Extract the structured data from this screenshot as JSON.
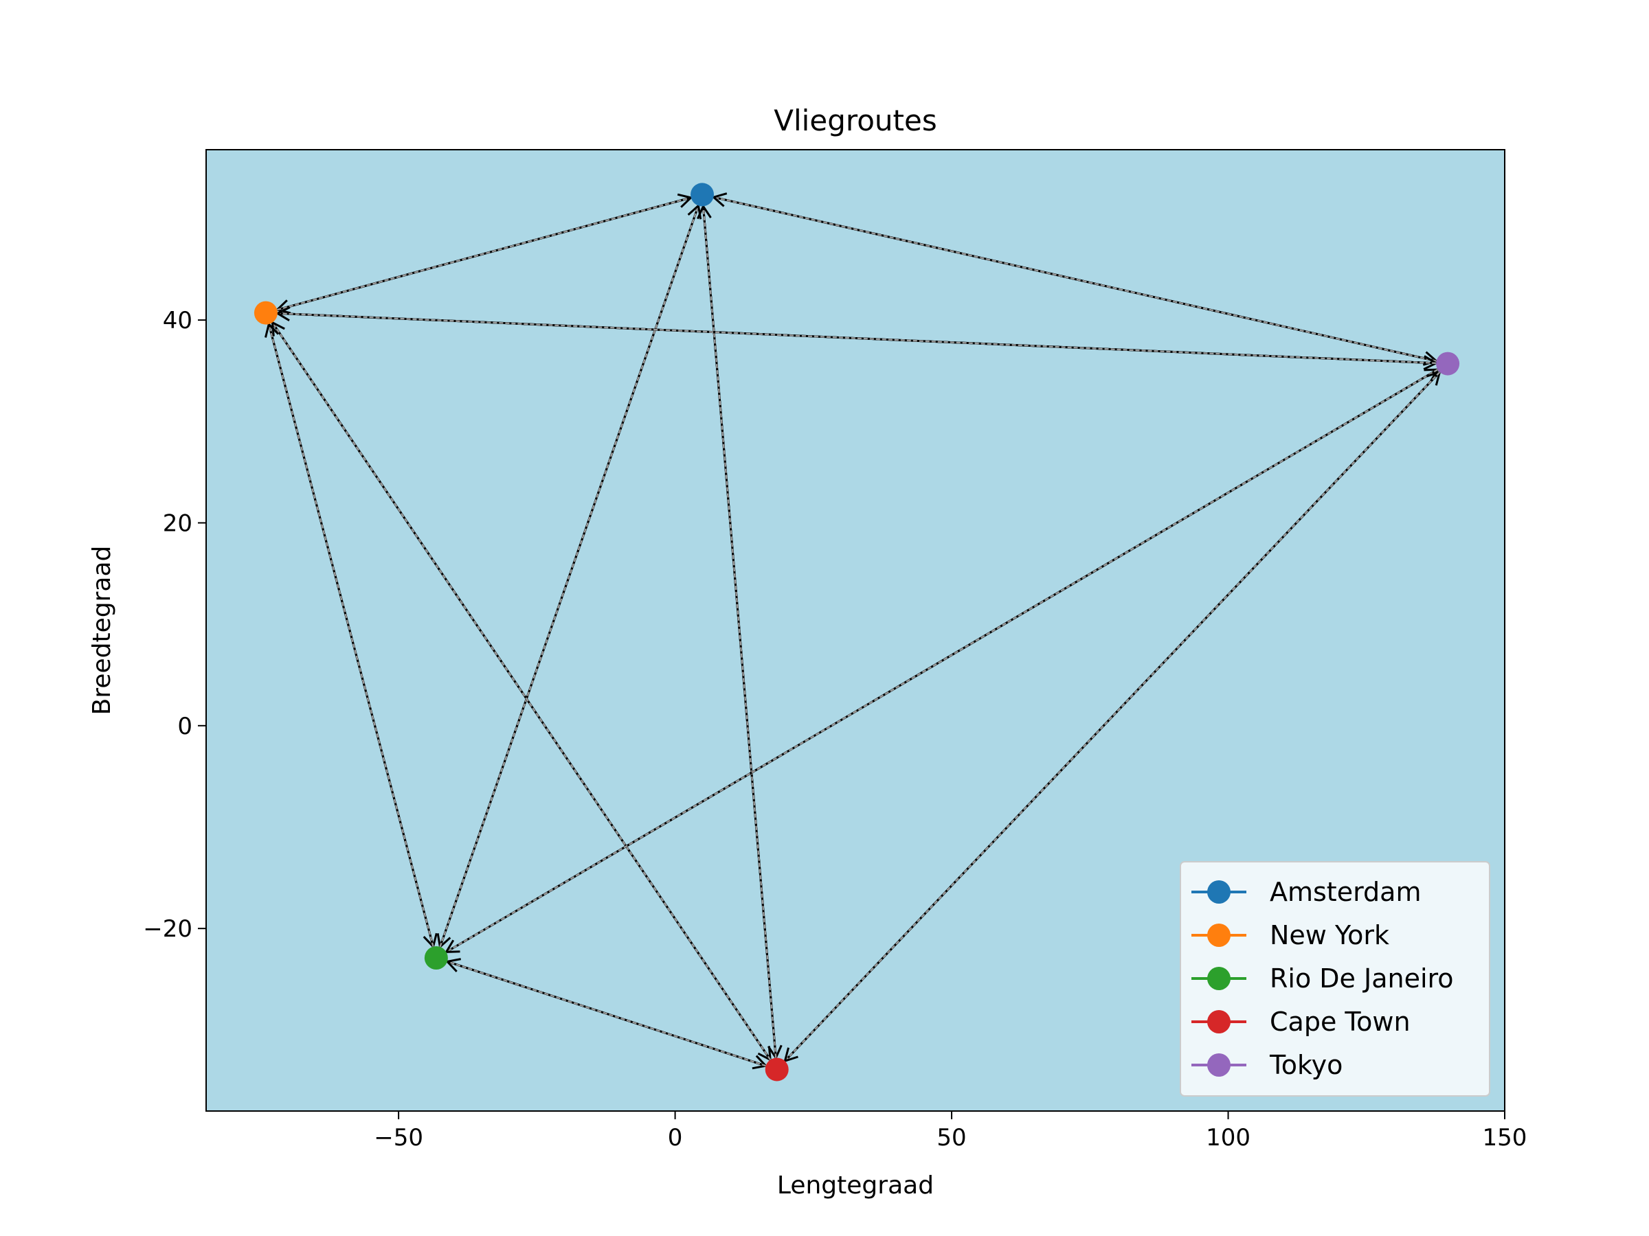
{
  "chart_data": {
    "type": "scatter",
    "title": "Vliegroutes",
    "xlabel": "Lengtegraad",
    "ylabel": "Breedtegraad",
    "xlim": [
      -84.8,
      150.0
    ],
    "ylim": [
      -38.0,
      56.8
    ],
    "xticks": [
      -50,
      0,
      50,
      100,
      150
    ],
    "xtick_labels": [
      "−50",
      "0",
      "50",
      "100",
      "150"
    ],
    "yticks": [
      -20,
      0,
      20,
      40
    ],
    "ytick_labels": [
      "−20",
      "0",
      "20",
      "40"
    ],
    "grid": false,
    "legend_position": "lower-right",
    "plot_background": "#add8e6",
    "series": [
      {
        "name": "Amsterdam",
        "x": 4.9,
        "y": 52.37,
        "color": "#1f77b4"
      },
      {
        "name": "New York",
        "x": -74.0,
        "y": 40.71,
        "color": "#ff7f0e"
      },
      {
        "name": "Rio De Janeiro",
        "x": -43.2,
        "y": -22.9,
        "color": "#2ca02c"
      },
      {
        "name": "Cape Town",
        "x": 18.4,
        "y": -33.9,
        "color": "#d62728"
      },
      {
        "name": "Tokyo",
        "x": 139.7,
        "y": 35.7,
        "color": "#9467bd"
      }
    ],
    "routes": [
      {
        "from": "Amsterdam",
        "to": "New York"
      },
      {
        "from": "Amsterdam",
        "to": "Rio De Janeiro"
      },
      {
        "from": "Amsterdam",
        "to": "Cape Town"
      },
      {
        "from": "Amsterdam",
        "to": "Tokyo"
      },
      {
        "from": "New York",
        "to": "Rio De Janeiro"
      },
      {
        "from": "New York",
        "to": "Cape Town"
      },
      {
        "from": "New York",
        "to": "Tokyo"
      },
      {
        "from": "Rio De Janeiro",
        "to": "Cape Town"
      },
      {
        "from": "Rio De Janeiro",
        "to": "Tokyo"
      },
      {
        "from": "Cape Town",
        "to": "Tokyo"
      }
    ]
  }
}
